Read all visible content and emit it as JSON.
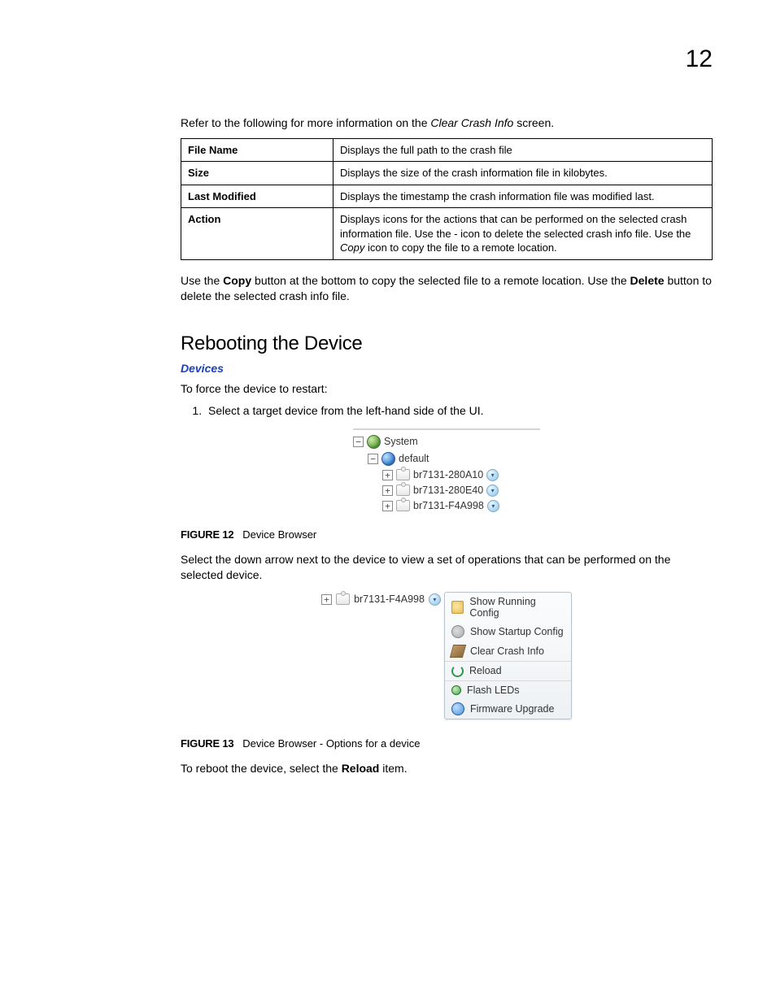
{
  "page_number": "12",
  "intro": {
    "pre": "Refer to the following for more information on the ",
    "em": "Clear Crash Info",
    "post": " screen."
  },
  "table": {
    "columns_width": [
      "170px",
      "auto"
    ],
    "rows": [
      {
        "label": "File Name",
        "desc": "Displays the full path to the crash file"
      },
      {
        "label": "Size",
        "desc": "Displays the size of the crash information file in kilobytes."
      },
      {
        "label": "Last Modified",
        "desc": "Displays the timestamp the crash information file was modified last."
      },
      {
        "label": "Action",
        "desc_pre": "Displays icons for the actions that can be performed on the selected crash information file. Use the - icon to delete the selected crash info file. Use the ",
        "desc_em": "Copy",
        "desc_post": " icon to copy the file to a remote location."
      }
    ]
  },
  "after_table": {
    "t1": "Use the ",
    "b1": "Copy",
    "t2": " button at the bottom to copy the selected file to a remote location. Use the ",
    "b2": "Delete",
    "t3": " button to delete the selected crash info file."
  },
  "section_heading": "Rebooting the Device",
  "sub_link": "Devices",
  "restart_intro": "To force the device to restart:",
  "step1": "Select a target device from the left-hand side of the UI.",
  "tree": {
    "system": "System",
    "default": "default",
    "devices": [
      "br7131-280A10",
      "br7131-280E40",
      "br7131-F4A998"
    ]
  },
  "fig12": {
    "num": "FIGURE 12",
    "caption": "Device Browser"
  },
  "after_fig12": "Select the down arrow next to the device to view a set of operations that can be performed on the selected device.",
  "fig13_device": "br7131-F4A998",
  "menu_items": [
    {
      "label": "Show Running Config",
      "icon": "folder"
    },
    {
      "label": "Show Startup Config",
      "icon": "gear"
    },
    {
      "label": "Clear Crash Info",
      "icon": "brush"
    },
    {
      "label": "Reload",
      "icon": "reload",
      "sep": true
    },
    {
      "label": "Flash LEDs",
      "icon": "led",
      "sep": true
    },
    {
      "label": "Firmware Upgrade",
      "icon": "fw"
    }
  ],
  "fig13": {
    "num": "FIGURE 13",
    "caption": "Device Browser - Options for a device"
  },
  "closing": {
    "t1": "To reboot the device, select the ",
    "b": "Reload",
    "t2": " item."
  },
  "colors": {
    "link": "#1a3fbf",
    "table_border": "#000000",
    "menu_border": "#b9c3cc"
  }
}
